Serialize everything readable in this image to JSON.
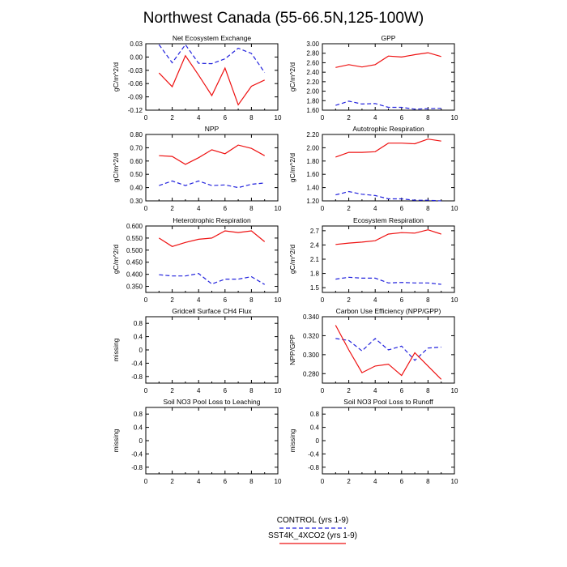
{
  "figure": {
    "title": "Northwest Canada (55-66.5N,125-100W)",
    "legend": [
      {
        "label": "CONTROL (yrs 1-9)",
        "color": "#2222dd",
        "dash": true
      },
      {
        "label": "SST4K_4XCO2 (yrs 1-9)",
        "color": "#ee1111",
        "dash": false
      }
    ]
  },
  "chart_data": [
    {
      "type": "line",
      "title": "Net Ecosystem Exchange",
      "ylabel": "gC/m^2/d",
      "xlim": [
        0,
        10
      ],
      "xticks": [
        "0",
        "2",
        "4",
        "6",
        "8",
        "10"
      ],
      "ylim": [
        -0.12,
        0.03
      ],
      "yticks": [
        "0.03",
        "0.00",
        "-0.03",
        "-0.06",
        "-0.09",
        "-0.12"
      ],
      "x": [
        1,
        2,
        3,
        4,
        5,
        6,
        7,
        8,
        9
      ],
      "series": [
        {
          "name": "CONTROL (yrs 1-9)",
          "values": [
            0.028,
            -0.013,
            0.028,
            -0.014,
            -0.015,
            -0.004,
            0.02,
            0.008,
            -0.035
          ]
        },
        {
          "name": "SST4K_4XCO2 (yrs 1-9)",
          "values": [
            -0.036,
            -0.067,
            0.003,
            -0.041,
            -0.087,
            -0.025,
            -0.108,
            -0.066,
            -0.052
          ]
        }
      ]
    },
    {
      "type": "line",
      "title": "GPP",
      "ylabel": "gC/m^2/d",
      "xlim": [
        0,
        10
      ],
      "xticks": [
        "0",
        "2",
        "4",
        "6",
        "8",
        "10"
      ],
      "ylim": [
        1.6,
        3.0
      ],
      "yticks": [
        "3.00",
        "2.80",
        "2.60",
        "2.40",
        "2.20",
        "2.00",
        "1.80",
        "1.60"
      ],
      "x": [
        1,
        2,
        3,
        4,
        5,
        6,
        7,
        8,
        9
      ],
      "series": [
        {
          "name": "CONTROL (yrs 1-9)",
          "values": [
            1.7,
            1.79,
            1.73,
            1.74,
            1.66,
            1.66,
            1.62,
            1.63,
            1.64
          ]
        },
        {
          "name": "SST4K_4XCO2 (yrs 1-9)",
          "values": [
            2.5,
            2.56,
            2.51,
            2.56,
            2.74,
            2.72,
            2.77,
            2.81,
            2.73
          ]
        }
      ]
    },
    {
      "type": "line",
      "title": "NPP",
      "ylabel": "gC/m^2/d",
      "xlim": [
        0,
        10
      ],
      "xticks": [
        "0",
        "2",
        "4",
        "6",
        "8",
        "10"
      ],
      "ylim": [
        0.3,
        0.8
      ],
      "yticks": [
        "0.80",
        "0.70",
        "0.60",
        "0.50",
        "0.40",
        "0.30"
      ],
      "x": [
        1,
        2,
        3,
        4,
        5,
        6,
        7,
        8,
        9
      ],
      "series": [
        {
          "name": "CONTROL (yrs 1-9)",
          "values": [
            0.415,
            0.45,
            0.415,
            0.45,
            0.415,
            0.42,
            0.4,
            0.425,
            0.435
          ]
        },
        {
          "name": "SST4K_4XCO2 (yrs 1-9)",
          "values": [
            0.64,
            0.635,
            0.575,
            0.625,
            0.685,
            0.655,
            0.72,
            0.695,
            0.64
          ]
        }
      ]
    },
    {
      "type": "line",
      "title": "Autotrophic Respiration",
      "ylabel": "gC/m^2/d",
      "xlim": [
        0,
        10
      ],
      "xticks": [
        "0",
        "2",
        "4",
        "6",
        "8",
        "10"
      ],
      "ylim": [
        1.2,
        2.2
      ],
      "yticks": [
        "2.20",
        "2.00",
        "1.80",
        "1.60",
        "1.40",
        "1.20"
      ],
      "x": [
        1,
        2,
        3,
        4,
        5,
        6,
        7,
        8,
        9
      ],
      "series": [
        {
          "name": "CONTROL (yrs 1-9)",
          "values": [
            1.29,
            1.34,
            1.3,
            1.28,
            1.23,
            1.23,
            1.21,
            1.21,
            1.2
          ]
        },
        {
          "name": "SST4K_4XCO2 (yrs 1-9)",
          "values": [
            1.86,
            1.93,
            1.93,
            1.94,
            2.07,
            2.07,
            2.06,
            2.13,
            2.1
          ]
        }
      ]
    },
    {
      "type": "line",
      "title": "Heterotrophic Respiration",
      "ylabel": "gC/m^2/d",
      "xlim": [
        0,
        10
      ],
      "xticks": [
        "0",
        "2",
        "4",
        "6",
        "8",
        "10"
      ],
      "ylim": [
        0.325,
        0.6
      ],
      "yticks": [
        "0.600",
        "0.550",
        "0.500",
        "0.450",
        "0.400",
        "0.350"
      ],
      "tickvals": [
        0.6,
        0.55,
        0.5,
        0.45,
        0.4,
        0.35
      ],
      "x": [
        1,
        2,
        3,
        4,
        5,
        6,
        7,
        8,
        9
      ],
      "series": [
        {
          "name": "CONTROL (yrs 1-9)",
          "values": [
            0.398,
            0.393,
            0.393,
            0.403,
            0.36,
            0.38,
            0.38,
            0.39,
            0.358
          ]
        },
        {
          "name": "SST4K_4XCO2 (yrs 1-9)",
          "values": [
            0.55,
            0.515,
            0.532,
            0.545,
            0.55,
            0.58,
            0.573,
            0.58,
            0.535
          ]
        }
      ]
    },
    {
      "type": "line",
      "title": "Ecosystem Respiration",
      "ylabel": "gC/m^2/d",
      "xlim": [
        0,
        10
      ],
      "xticks": [
        "0",
        "2",
        "4",
        "6",
        "8",
        "10"
      ],
      "ylim": [
        1.4,
        2.8
      ],
      "yticks": [
        "2.7",
        "2.4",
        "2.1",
        "1.8",
        "1.5"
      ],
      "tickvals": [
        2.7,
        2.4,
        2.1,
        1.8,
        1.5
      ],
      "x": [
        1,
        2,
        3,
        4,
        5,
        6,
        7,
        8,
        9
      ],
      "series": [
        {
          "name": "CONTROL (yrs 1-9)",
          "values": [
            1.68,
            1.72,
            1.7,
            1.7,
            1.6,
            1.61,
            1.6,
            1.6,
            1.57
          ]
        },
        {
          "name": "SST4K_4XCO2 (yrs 1-9)",
          "values": [
            2.41,
            2.44,
            2.46,
            2.49,
            2.63,
            2.66,
            2.65,
            2.72,
            2.63
          ]
        }
      ]
    },
    {
      "type": "line",
      "title": "Gridcell Surface CH4 Flux",
      "ylabel": "missing",
      "xlim": [
        0,
        10
      ],
      "xticks": [
        "0",
        "2",
        "4",
        "6",
        "8",
        "10"
      ],
      "ylim": [
        -1.0,
        1.0
      ],
      "yticks": [
        "0.8",
        "0.4",
        "0",
        "-0.4",
        "-0.8"
      ],
      "tickvals": [
        0.8,
        0.4,
        0,
        -0.4,
        -0.8
      ],
      "x": [],
      "series": []
    },
    {
      "type": "line",
      "title": "Carbon Use Efficiency (NPP/GPP)",
      "ylabel": "NPP/GPP",
      "xlim": [
        0,
        10
      ],
      "xticks": [
        "0",
        "2",
        "4",
        "6",
        "8",
        "10"
      ],
      "ylim": [
        0.27,
        0.34
      ],
      "yticks": [
        "0.340",
        "0.320",
        "0.300",
        "0.280"
      ],
      "tickvals": [
        0.34,
        0.32,
        0.3,
        0.28
      ],
      "x": [
        1,
        2,
        3,
        4,
        5,
        6,
        7,
        8,
        9
      ],
      "series": [
        {
          "name": "CONTROL (yrs 1-9)",
          "values": [
            0.317,
            0.315,
            0.304,
            0.317,
            0.305,
            0.309,
            0.294,
            0.307,
            0.308
          ]
        },
        {
          "name": "SST4K_4XCO2 (yrs 1-9)",
          "values": [
            0.331,
            0.305,
            0.281,
            0.288,
            0.29,
            0.278,
            0.302,
            0.288,
            0.274
          ]
        }
      ]
    },
    {
      "type": "line",
      "title": "Soil NO3 Pool Loss to Leaching",
      "ylabel": "missing",
      "xlim": [
        0,
        10
      ],
      "xticks": [
        "0",
        "2",
        "4",
        "6",
        "8",
        "10"
      ],
      "ylim": [
        -1.0,
        1.0
      ],
      "yticks": [
        "0.8",
        "0.4",
        "0",
        "-0.4",
        "-0.8"
      ],
      "tickvals": [
        0.8,
        0.4,
        0,
        -0.4,
        -0.8
      ],
      "x": [],
      "series": []
    },
    {
      "type": "line",
      "title": "Soil NO3 Pool Loss to Runoff",
      "ylabel": "missing",
      "xlim": [
        0,
        10
      ],
      "xticks": [
        "0",
        "2",
        "4",
        "6",
        "8",
        "10"
      ],
      "ylim": [
        -1.0,
        1.0
      ],
      "yticks": [
        "0.8",
        "0.4",
        "0",
        "-0.4",
        "-0.8"
      ],
      "tickvals": [
        0.8,
        0.4,
        0,
        -0.4,
        -0.8
      ],
      "x": [],
      "series": []
    }
  ]
}
